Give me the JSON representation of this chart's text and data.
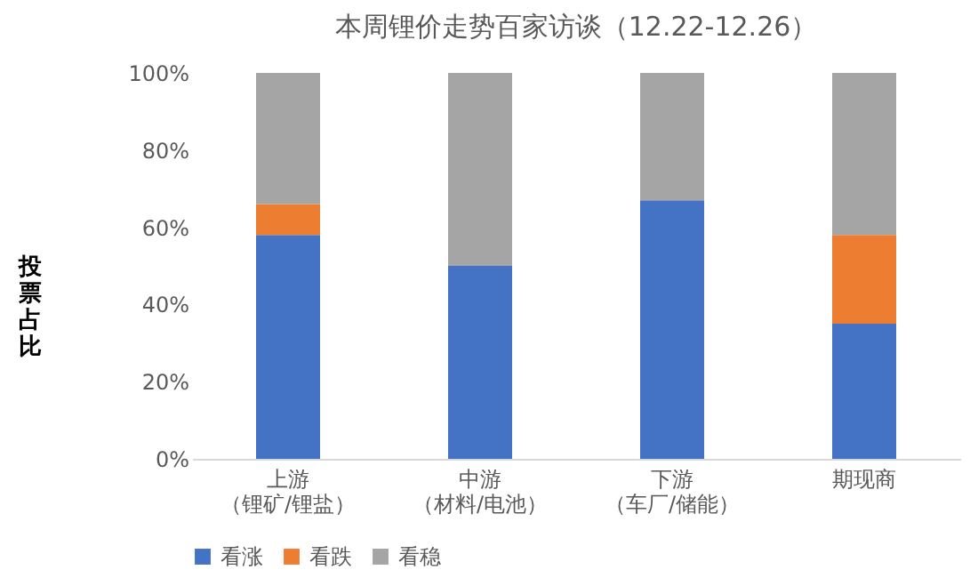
{
  "chart_data": {
    "type": "bar",
    "stacked": true,
    "title": "本周锂价走势百家访谈（12.22-12.26）",
    "ylabel": "投票占比",
    "categories": [
      "上游（锂矿/锂盐）",
      "中游（材料/电池）",
      "下游（车厂/储能）",
      "期现商"
    ],
    "series": [
      {
        "name": "看涨",
        "color": "#4472c4",
        "values": [
          58,
          50,
          67,
          35
        ]
      },
      {
        "name": "看跌",
        "color": "#ed7d31",
        "values": [
          8,
          null,
          null,
          23
        ]
      },
      {
        "name": "看稳",
        "color": "#a5a5a5",
        "values": [
          34,
          50,
          33,
          42
        ]
      }
    ],
    "ylim": [
      0,
      100
    ],
    "yticks": [
      {
        "value": 0,
        "label": "0%"
      },
      {
        "value": 20,
        "label": "20%"
      },
      {
        "value": 40,
        "label": "40%"
      },
      {
        "value": 60,
        "label": "60%"
      },
      {
        "value": 80,
        "label": "80%"
      },
      {
        "value": 100,
        "label": "100%"
      }
    ],
    "grid": false,
    "legend": "bottom"
  }
}
